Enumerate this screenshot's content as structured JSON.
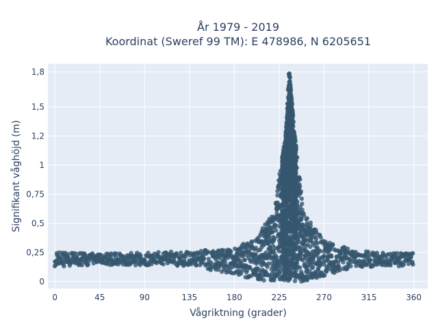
{
  "chart_data": {
    "type": "scatter",
    "title": "År 1979 - 2019",
    "subtitle": "Koordinat (Sweref 99 TM): E 478986, N 6205651",
    "xlabel": "Vågriktning (grader)",
    "ylabel": "Signifikant våghöjd (m)",
    "xlim": [
      -7,
      374
    ],
    "ylim": [
      -0.06,
      1.87
    ],
    "x_ticks": [
      0,
      45,
      90,
      135,
      180,
      225,
      270,
      315,
      360
    ],
    "x_tick_labels": [
      "0",
      "45",
      "90",
      "135",
      "180",
      "225",
      "270",
      "315",
      "360"
    ],
    "y_ticks": [
      0,
      0.25,
      0.5,
      0.75,
      1,
      1.25,
      1.5,
      1.8
    ],
    "y_tick_labels": [
      "0",
      "0,25",
      "0,5",
      "0,75",
      "1",
      "1,2",
      "1,5",
      "1,8"
    ],
    "grid": true,
    "legend": "none",
    "colors": {
      "marker": "#34566e",
      "plot_bg": "#e5ecf6",
      "grid": "#ffffff"
    },
    "series": [
      {
        "envelope": [
          {
            "x": 0,
            "ymin": 0.13,
            "ymax": 0.25
          },
          {
            "x": 45,
            "ymin": 0.14,
            "ymax": 0.24
          },
          {
            "x": 90,
            "ymin": 0.14,
            "ymax": 0.25
          },
          {
            "x": 135,
            "ymin": 0.13,
            "ymax": 0.26
          },
          {
            "x": 170,
            "ymin": 0.08,
            "ymax": 0.28
          },
          {
            "x": 200,
            "ymin": 0.02,
            "ymax": 0.35
          },
          {
            "x": 220,
            "ymin": 0.0,
            "ymax": 0.6
          },
          {
            "x": 232,
            "ymin": 0.0,
            "ymax": 1.3
          },
          {
            "x": 235,
            "ymin": 0.0,
            "ymax": 1.84
          },
          {
            "x": 240,
            "ymin": 0.0,
            "ymax": 1.3
          },
          {
            "x": 250,
            "ymin": 0.0,
            "ymax": 0.6
          },
          {
            "x": 270,
            "ymin": 0.05,
            "ymax": 0.35
          },
          {
            "x": 300,
            "ymin": 0.12,
            "ymax": 0.27
          },
          {
            "x": 330,
            "ymin": 0.13,
            "ymax": 0.25
          },
          {
            "x": 360,
            "ymin": 0.13,
            "ymax": 0.25
          }
        ]
      }
    ]
  }
}
